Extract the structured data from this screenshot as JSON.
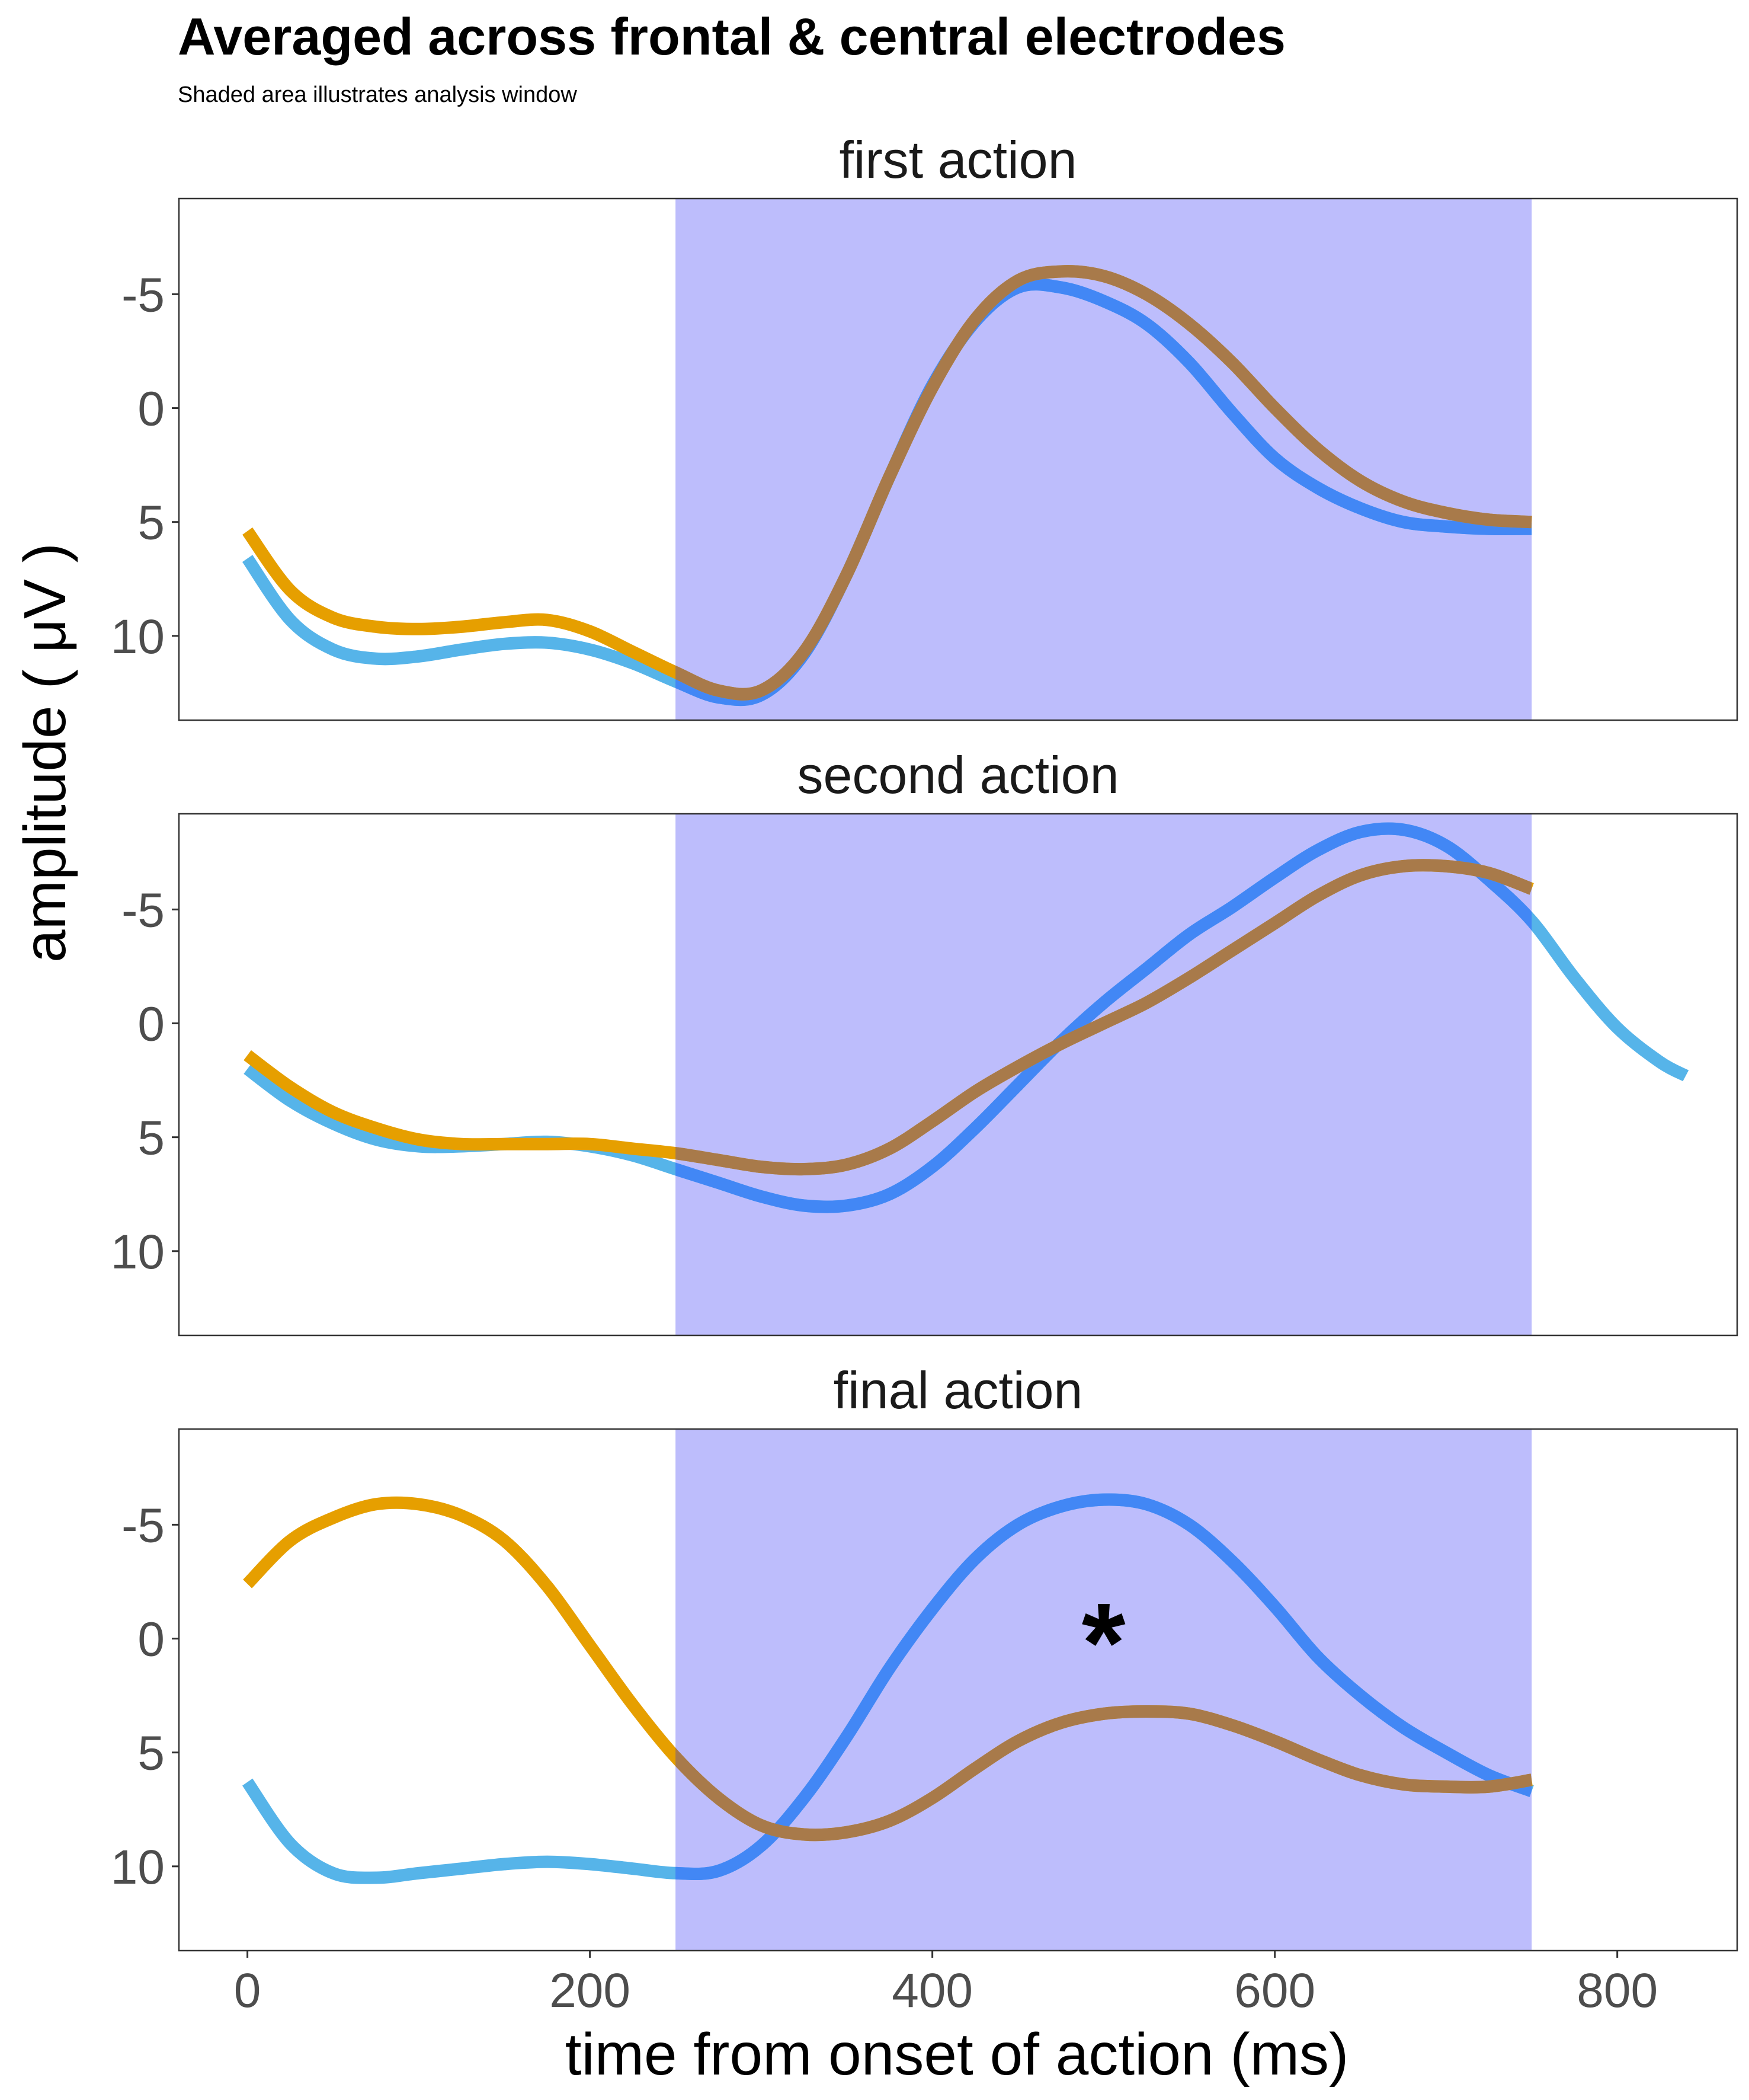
{
  "chart_data": {
    "type": "line",
    "title": "Averaged across frontal & central electrodes",
    "subtitle": "Shaded area illustrates analysis window",
    "xlabel": "time from onset of action (ms)",
    "ylabel": "amplitude ( μV )",
    "x_ticks": [
      "0",
      "200",
      "400",
      "600",
      "800"
    ],
    "y_ticks": [
      "-5",
      "0",
      "5",
      "10"
    ],
    "xlim": [
      -40,
      870
    ],
    "ylim": [
      -9.2,
      13.7
    ],
    "y_reversed": true,
    "grid": false,
    "analysis_window": [
      250,
      750
    ],
    "colors": {
      "series_a": "#56B4E9",
      "series_a_window": "#4287F5",
      "series_b": "#E69F00",
      "series_b_window": "#A87A4A",
      "window_fill": "#BDBDFC"
    },
    "panels": [
      {
        "label": "first action",
        "annotation": "",
        "series": [
          {
            "x": [
              0,
              25,
              50,
              75,
              100,
              125,
              150,
              175,
              200,
              225,
              250,
              275,
              300,
              325,
              350,
              375,
              400,
              425,
              450,
              475,
              500,
              525,
              550,
              575,
              600,
              625,
              650,
              675,
              700,
              725,
              750
            ],
            "y": [
              6.6,
              9.3,
              10.6,
              11.0,
              10.9,
              10.6,
              10.35,
              10.3,
              10.6,
              11.2,
              12.0,
              12.7,
              12.6,
              10.8,
              7.3,
              3.0,
              -1.0,
              -3.8,
              -5.3,
              -5.3,
              -4.7,
              -3.7,
              -2.0,
              0.2,
              2.2,
              3.5,
              4.4,
              5.0,
              5.2,
              5.3,
              5.3
            ]
          },
          {
            "x": [
              0,
              25,
              50,
              75,
              100,
              125,
              150,
              175,
              200,
              225,
              250,
              275,
              300,
              325,
              350,
              375,
              400,
              425,
              450,
              475,
              500,
              525,
              550,
              575,
              600,
              625,
              650,
              675,
              700,
              725,
              750
            ],
            "y": [
              5.4,
              8.0,
              9.2,
              9.6,
              9.7,
              9.6,
              9.4,
              9.3,
              9.8,
              10.7,
              11.6,
              12.4,
              12.4,
              10.7,
              7.3,
              3.0,
              -0.9,
              -3.9,
              -5.6,
              -6.0,
              -5.8,
              -5.0,
              -3.7,
              -2.0,
              0.0,
              1.8,
              3.2,
              4.1,
              4.6,
              4.9,
              5.0
            ]
          }
        ]
      },
      {
        "label": "second action",
        "annotation": "",
        "series": [
          {
            "x": [
              0,
              25,
              50,
              75,
              100,
              125,
              150,
              175,
              200,
              225,
              250,
              275,
              300,
              325,
              350,
              375,
              400,
              425,
              450,
              475,
              500,
              525,
              550,
              575,
              600,
              625,
              650,
              675,
              700,
              725,
              750,
              775,
              800,
              825,
              840
            ],
            "y": [
              2.0,
              3.4,
              4.4,
              5.1,
              5.4,
              5.4,
              5.3,
              5.2,
              5.4,
              5.8,
              6.4,
              7.0,
              7.6,
              8.0,
              8.0,
              7.5,
              6.3,
              4.6,
              2.7,
              0.8,
              -0.9,
              -2.4,
              -3.9,
              -5.1,
              -6.4,
              -7.6,
              -8.4,
              -8.5,
              -7.8,
              -6.3,
              -4.5,
              -2.0,
              0.2,
              1.7,
              2.3
            ]
          },
          {
            "x": [
              0,
              25,
              50,
              75,
              100,
              125,
              150,
              175,
              200,
              225,
              250,
              275,
              300,
              325,
              350,
              375,
              400,
              425,
              450,
              475,
              500,
              525,
              550,
              575,
              600,
              625,
              650,
              675,
              700,
              725,
              750
            ],
            "y": [
              1.4,
              2.8,
              3.9,
              4.6,
              5.1,
              5.3,
              5.3,
              5.3,
              5.3,
              5.5,
              5.7,
              6.0,
              6.3,
              6.4,
              6.2,
              5.5,
              4.3,
              3.0,
              1.9,
              0.9,
              0.0,
              -0.9,
              -2.0,
              -3.2,
              -4.4,
              -5.6,
              -6.5,
              -6.9,
              -6.9,
              -6.6,
              -5.9
            ]
          }
        ]
      },
      {
        "label": "final action",
        "annotation": "*",
        "series": [
          {
            "x": [
              0,
              25,
              50,
              75,
              100,
              125,
              150,
              175,
              200,
              225,
              250,
              275,
              300,
              325,
              350,
              375,
              400,
              425,
              450,
              475,
              500,
              525,
              550,
              575,
              600,
              625,
              650,
              675,
              700,
              725,
              750
            ],
            "y": [
              6.3,
              9.0,
              10.3,
              10.5,
              10.3,
              10.1,
              9.9,
              9.8,
              9.9,
              10.1,
              10.3,
              10.2,
              9.1,
              7.0,
              4.3,
              1.3,
              -1.3,
              -3.5,
              -5.0,
              -5.8,
              -6.1,
              -5.9,
              -5.0,
              -3.4,
              -1.4,
              0.8,
              2.5,
              3.9,
              5.0,
              6.0,
              6.7
            ]
          },
          {
            "x": [
              0,
              25,
              50,
              75,
              100,
              125,
              150,
              175,
              200,
              225,
              250,
              275,
              300,
              325,
              350,
              375,
              400,
              425,
              450,
              475,
              500,
              525,
              550,
              575,
              600,
              625,
              650,
              675,
              700,
              725,
              750
            ],
            "y": [
              -2.4,
              -4.3,
              -5.3,
              -5.9,
              -5.9,
              -5.4,
              -4.3,
              -2.3,
              0.3,
              2.9,
              5.2,
              7.0,
              8.2,
              8.6,
              8.5,
              8.0,
              7.0,
              5.7,
              4.5,
              3.7,
              3.3,
              3.2,
              3.3,
              3.8,
              4.5,
              5.3,
              6.0,
              6.4,
              6.5,
              6.5,
              6.2
            ]
          }
        ]
      }
    ]
  }
}
